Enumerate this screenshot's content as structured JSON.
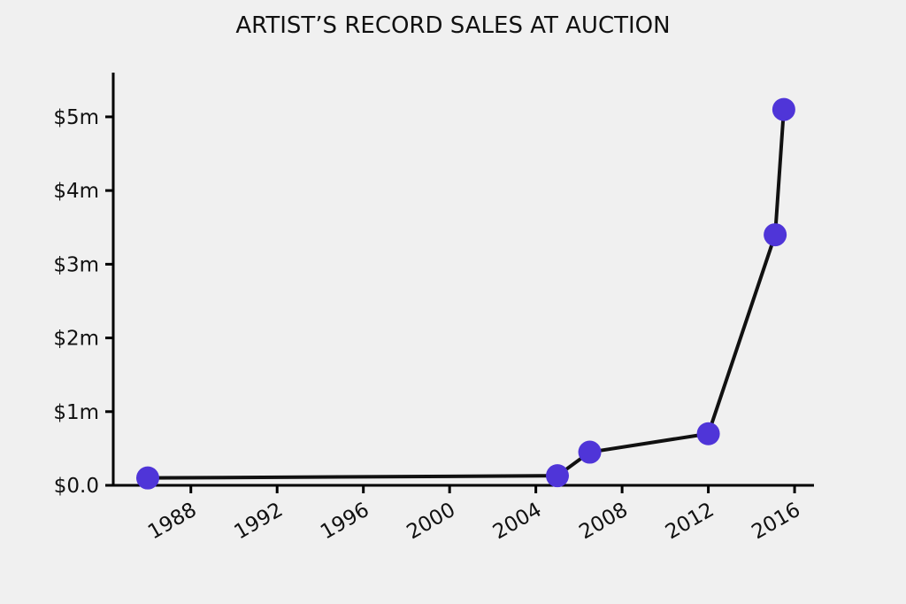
{
  "page": {
    "background_color": "#f0f0f0"
  },
  "chart_data": {
    "type": "line",
    "title": "ARTIST’S RECORD SALES AT AUCTION",
    "xlabel": "",
    "ylabel": "",
    "x": [
      1986,
      2005,
      2006.5,
      2012,
      2015.1,
      2015.5
    ],
    "values": [
      0.1,
      0.13,
      0.45,
      0.7,
      3.4,
      5.1
    ],
    "values_unit": "$m",
    "xticks": [
      {
        "value": 1988,
        "label": "1988"
      },
      {
        "value": 1992,
        "label": "1992"
      },
      {
        "value": 1996,
        "label": "1996"
      },
      {
        "value": 2000,
        "label": "2000"
      },
      {
        "value": 2004,
        "label": "2004"
      },
      {
        "value": 2008,
        "label": "2008"
      },
      {
        "value": 2012,
        "label": "2012"
      },
      {
        "value": 2016,
        "label": "2016"
      }
    ],
    "yticks": [
      {
        "value": 0,
        "label": "$0.0"
      },
      {
        "value": 1,
        "label": "$1m"
      },
      {
        "value": 2,
        "label": "$2m"
      },
      {
        "value": 3,
        "label": "$3m"
      },
      {
        "value": 4,
        "label": "$4m"
      },
      {
        "value": 5,
        "label": "$5m"
      }
    ],
    "xlim": [
      1984.4,
      2016.9
    ],
    "ylim": [
      0,
      5.6
    ],
    "grid": false,
    "legend": "none",
    "xtick_rotation_deg": 30,
    "colors": {
      "background": "#f0f0f0",
      "line": "#111111",
      "marker": "#4f35d8",
      "axis": "#000000",
      "text": "#111111"
    }
  }
}
